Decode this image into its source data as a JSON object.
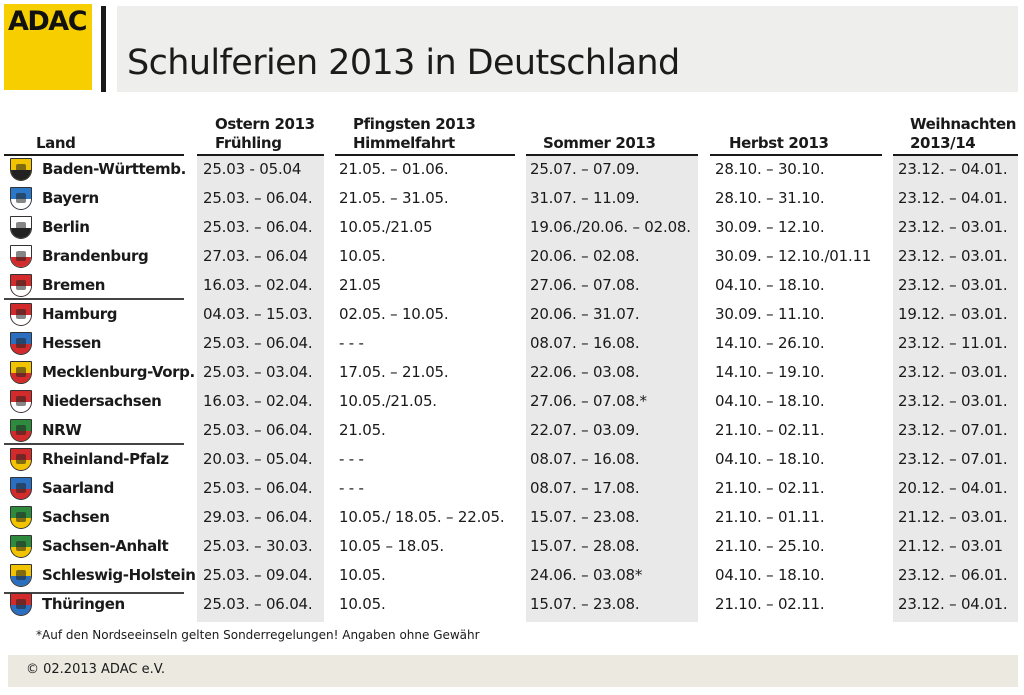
{
  "brand": {
    "logo_text": "ADAC",
    "accent": "#f7cf00"
  },
  "title": "Schulferien 2013 in Deutschland",
  "headers": {
    "land": "Land",
    "ostern": [
      "Ostern 2013",
      "Frühling"
    ],
    "pfingsten": [
      "Pfingsten 2013",
      "Himmelfahrt"
    ],
    "sommer": "Sommer 2013",
    "herbst": "Herbst 2013",
    "weihnachten": [
      "Weihnachten",
      "2013/14"
    ]
  },
  "rows": [
    {
      "land": "Baden-Württemb.",
      "ostern": "25.03 - 05.04",
      "pfingsten": "21.05. – 01.06.",
      "sommer": "25.07. – 07.09.",
      "herbst": "28.10. – 30.10.",
      "weihnachten": "23.12. – 04.01.",
      "crest_colors": [
        "#f2c300",
        "#222222"
      ]
    },
    {
      "land": "Bayern",
      "ostern": "25.03. – 06.04.",
      "pfingsten": "21.05. – 31.05.",
      "sommer": "31.07. – 11.09.",
      "herbst": "28.10. – 31.10.",
      "weihnachten": "23.12. – 04.01.",
      "crest_colors": [
        "#2b78c8",
        "#ffffff"
      ]
    },
    {
      "land": "Berlin",
      "ostern": "25.03. – 06.04.",
      "pfingsten": "10.05./21.05",
      "sommer": "19.06./20.06. – 02.08.",
      "herbst": "30.09. – 12.10.",
      "weihnachten": "23.12. – 03.01.",
      "crest_colors": [
        "#ffffff",
        "#222222"
      ]
    },
    {
      "land": "Brandenburg",
      "ostern": "27.03. – 06.04",
      "pfingsten": "10.05.",
      "sommer": "20.06. – 02.08.",
      "herbst": "30.09. – 12.10./01.11",
      "weihnachten": "23.12. – 03.01.",
      "crest_colors": [
        "#ffffff",
        "#d32b2b"
      ]
    },
    {
      "land": "Bremen",
      "ostern": "16.03. – 02.04.",
      "pfingsten": "21.05",
      "sommer": "27.06. – 07.08.",
      "herbst": "04.10. – 18.10.",
      "weihnachten": "23.12. – 03.01.",
      "crest_colors": [
        "#d32b2b",
        "#ffffff"
      ]
    },
    {
      "land": "Hamburg",
      "ostern": "04.03. – 15.03.",
      "pfingsten": "02.05. – 10.05.",
      "sommer": "20.06. – 31.07.",
      "herbst": "30.09. – 11.10.",
      "weihnachten": "19.12. – 03.01.",
      "crest_colors": [
        "#d32b2b",
        "#ffffff"
      ]
    },
    {
      "land": "Hessen",
      "ostern": "25.03. – 06.04.",
      "pfingsten": "- - -",
      "sommer": "08.07. – 16.08.",
      "herbst": "14.10. – 26.10.",
      "weihnachten": "23.12. – 11.01.",
      "crest_colors": [
        "#2b6fc0",
        "#d32b2b"
      ]
    },
    {
      "land": "Mecklenburg-Vorp.",
      "ostern": "25.03. – 03.04.",
      "pfingsten": "17.05. – 21.05.",
      "sommer": "22.06. – 03.08.",
      "herbst": "14.10. – 19.10.",
      "weihnachten": "23.12. – 03.01.",
      "crest_colors": [
        "#f2c300",
        "#d32b2b"
      ]
    },
    {
      "land": "Niedersachsen",
      "ostern": "16.03. – 02.04.",
      "pfingsten": "10.05./21.05.",
      "sommer": "27.06. – 07.08.*",
      "herbst": "04.10. – 18.10.",
      "weihnachten": "23.12. – 03.01.",
      "crest_colors": [
        "#d32b2b",
        "#ffffff"
      ]
    },
    {
      "land": "NRW",
      "ostern": "25.03. – 06.04.",
      "pfingsten": "21.05.",
      "sommer": "22.07. – 03.09.",
      "herbst": "21.10. – 02.11.",
      "weihnachten": "23.12. – 07.01.",
      "crest_colors": [
        "#2e8b3e",
        "#d32b2b"
      ]
    },
    {
      "land": "Rheinland-Pfalz",
      "ostern": "20.03. – 05.04.",
      "pfingsten": "- - -",
      "sommer": "08.07. – 16.08.",
      "herbst": "04.10. – 18.10.",
      "weihnachten": "23.12. – 07.01.",
      "crest_colors": [
        "#d32b2b",
        "#f2c300"
      ]
    },
    {
      "land": "Saarland",
      "ostern": "25.03. – 06.04.",
      "pfingsten": "- - -",
      "sommer": "08.07. – 17.08.",
      "herbst": "21.10. – 02.11.",
      "weihnachten": "20.12. – 04.01.",
      "crest_colors": [
        "#2b6fc0",
        "#d32b2b"
      ]
    },
    {
      "land": "Sachsen",
      "ostern": "29.03. – 06.04.",
      "pfingsten": "10.05./ 18.05. – 22.05.",
      "sommer": "15.07. – 23.08.",
      "herbst": "21.10. – 01.11.",
      "weihnachten": "21.12. – 03.01.",
      "crest_colors": [
        "#2e8b3e",
        "#f2c300"
      ]
    },
    {
      "land": "Sachsen-Anhalt",
      "ostern": "25.03. – 30.03.",
      "pfingsten": "10.05 – 18.05.",
      "sommer": "15.07. – 28.08.",
      "herbst": "21.10. – 25.10.",
      "weihnachten": "21.12. – 03.01",
      "crest_colors": [
        "#2e8b3e",
        "#f2c300"
      ]
    },
    {
      "land": "Schleswig-Holstein",
      "ostern": "25.03. – 09.04.",
      "pfingsten": "10.05.",
      "sommer": "24.06. – 03.08*",
      "herbst": "04.10. – 18.10.",
      "weihnachten": "23.12. – 06.01.",
      "crest_colors": [
        "#f2c300",
        "#2b6fc0"
      ]
    },
    {
      "land": "Thüringen",
      "ostern": "25.03. – 06.04.",
      "pfingsten": "10.05.",
      "sommer": "15.07. – 23.08.",
      "herbst": "21.10. – 02.11.",
      "weihnachten": "23.12. – 04.01.",
      "crest_colors": [
        "#d32b2b",
        "#2b6fc0"
      ]
    }
  ],
  "footnote": "*Auf den Nordseeinseln gelten Sonderregelungen!   Angaben ohne Gewähr",
  "copyright": "© 02.2013 ADAC e.V."
}
